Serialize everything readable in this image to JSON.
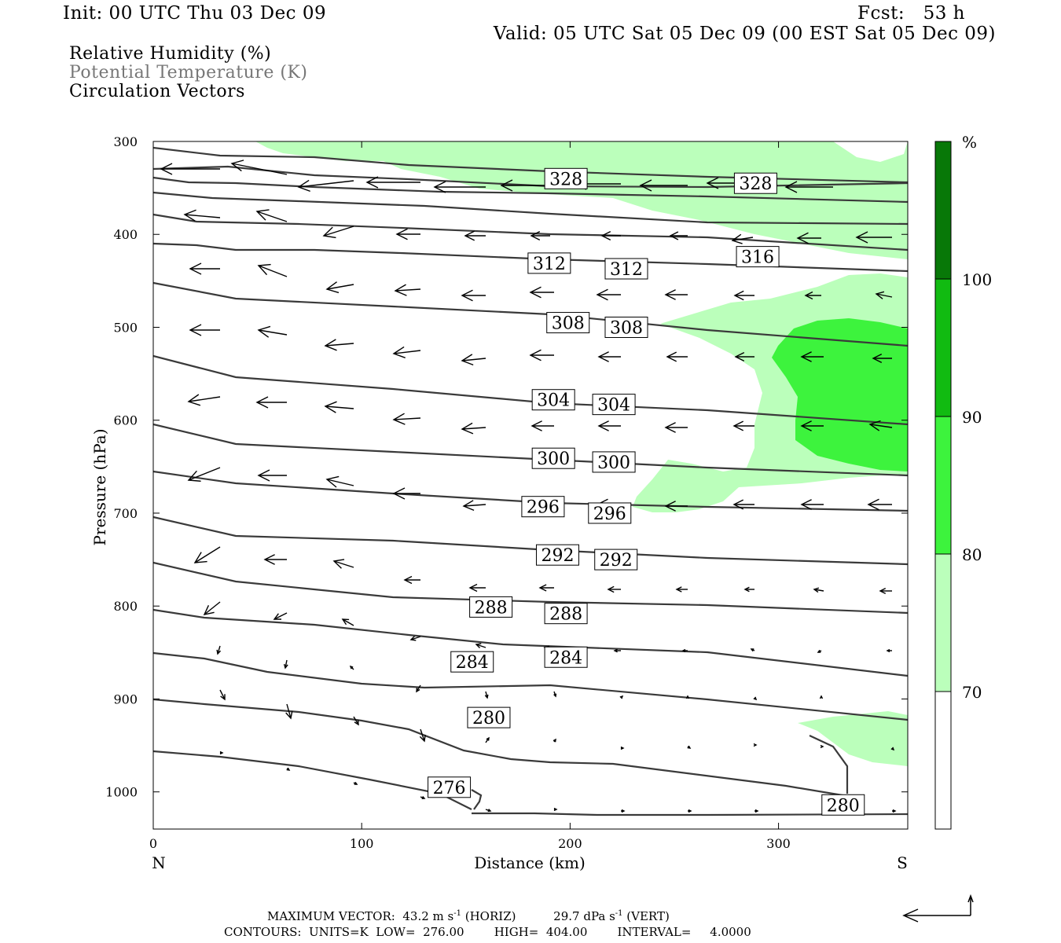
{
  "header": {
    "init": "Init: 00 UTC Thu 03 Dec 09",
    "fcst": "Fcst:   53 h",
    "valid": "Valid: 05 UTC Sat 05 Dec 09 (00 EST Sat 05 Dec 09)"
  },
  "legend": {
    "rh": "Relative Humidity (%)",
    "theta": "Potential Temperature (K)",
    "vectors": "Circulation Vectors"
  },
  "colors": {
    "rh_70_80": "#bbffbb",
    "rh_80_90": "#3df33d",
    "rh_90_100": "#11bb11",
    "rh_100": "#087808",
    "contour": "#3a3a3a"
  },
  "chart_data": {
    "type": "cross-section",
    "xlabel": "Distance (km)",
    "ylabel": "Pressure (hPa)",
    "x_left_label": "N",
    "x_right_label": "S",
    "xlim": [
      0,
      362
    ],
    "ylim": [
      1040,
      300
    ],
    "x_ticks": [
      0,
      100,
      200,
      300
    ],
    "y_ticks": [
      300,
      400,
      500,
      600,
      700,
      800,
      900,
      1000
    ],
    "colorbar": {
      "unit": "%",
      "levels": [
        70,
        80,
        90,
        100
      ]
    },
    "theta_contours": [
      {
        "value": 276,
        "label": "276",
        "label_at": [
          142,
          995
        ]
      },
      {
        "value": 280,
        "label": "280",
        "label_at": [
          161,
          920
        ]
      },
      {
        "value": 280,
        "label": "280",
        "label_at": [
          331,
          1014
        ]
      },
      {
        "value": 284,
        "label": "284",
        "label_at": [
          153,
          860
        ]
      },
      {
        "value": 284,
        "label": "284",
        "label_at": [
          198,
          855
        ]
      },
      {
        "value": 288,
        "label": "288",
        "label_at": [
          162,
          801
        ]
      },
      {
        "value": 288,
        "label": "288",
        "label_at": [
          198,
          808
        ]
      },
      {
        "value": 292,
        "label": "292",
        "label_at": [
          194,
          745
        ]
      },
      {
        "value": 292,
        "label": "292",
        "label_at": [
          222,
          750
        ]
      },
      {
        "value": 296,
        "label": "296",
        "label_at": [
          187,
          693
        ]
      },
      {
        "value": 296,
        "label": "296",
        "label_at": [
          219,
          700
        ]
      },
      {
        "value": 300,
        "label": "300",
        "label_at": [
          192,
          641
        ]
      },
      {
        "value": 300,
        "label": "300",
        "label_at": [
          221,
          645
        ]
      },
      {
        "value": 304,
        "label": "304",
        "label_at": [
          192,
          578
        ]
      },
      {
        "value": 304,
        "label": "304",
        "label_at": [
          221,
          583
        ]
      },
      {
        "value": 308,
        "label": "308",
        "label_at": [
          199,
          495
        ]
      },
      {
        "value": 308,
        "label": "308",
        "label_at": [
          227,
          500
        ]
      },
      {
        "value": 312,
        "label": "312",
        "label_at": [
          190,
          431
        ]
      },
      {
        "value": 312,
        "label": "312",
        "label_at": [
          227,
          437
        ]
      },
      {
        "value": 316,
        "label": "316",
        "label_at": [
          290,
          424
        ]
      },
      {
        "value": 328,
        "label": "328",
        "label_at": [
          198,
          340
        ]
      },
      {
        "value": 328,
        "label": "328",
        "label_at": [
          289,
          345
        ]
      }
    ],
    "max_vector_text": "MAXIMUM VECTOR:  43.2 m s",
    "max_vector_horiz_unit": " (HORIZ)",
    "max_vector_vert": "29.7 dPa s",
    "max_vector_vert_unit": " (VERT)",
    "exponent": "-1",
    "contours_text": "CONTOURS:  UNITS=K  LOW=  276.00        HIGH=  404.00        INTERVAL=     4.0000"
  }
}
